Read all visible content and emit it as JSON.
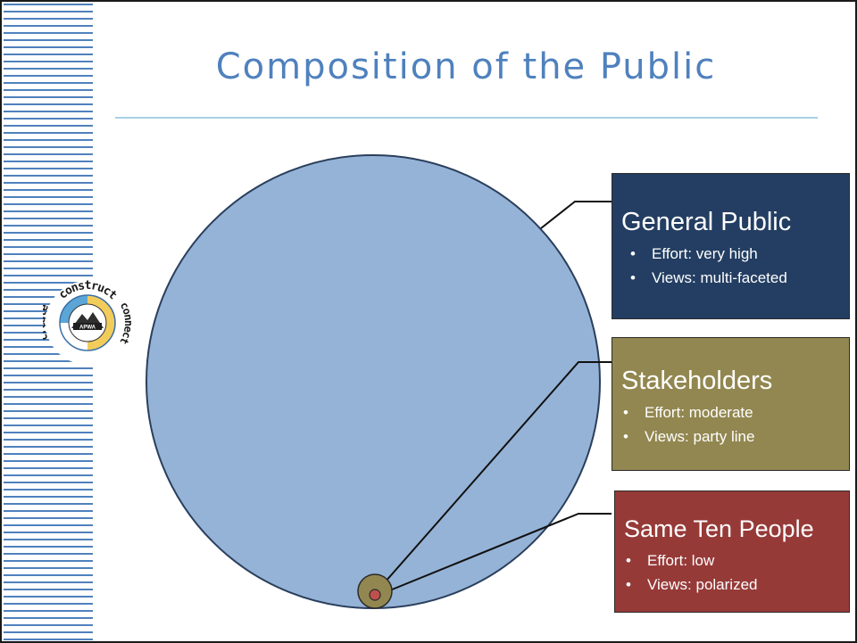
{
  "slide": {
    "title": "Composition of the Public"
  },
  "logo": {
    "top_text": "construct",
    "right_text": "connect",
    "left_text": "create",
    "badge": "APWA",
    "ring_text": "FOR OUR COMMUNITIES",
    "state": "WASHINGTON"
  },
  "groups": [
    {
      "heading": "General Public",
      "bullets": [
        "Effort: very high",
        "Views: multi-faceted"
      ],
      "color": "#233e62"
    },
    {
      "heading": "Stakeholders",
      "bullets": [
        "Effort: moderate",
        "Views: party line"
      ],
      "color": "#928750"
    },
    {
      "heading": "Same Ten People",
      "bullets": [
        "Effort: low",
        "Views: polarized"
      ],
      "color": "#963a38"
    }
  ],
  "colors": {
    "accent": "#4f81bd",
    "general_circle": "#95b3d7",
    "stakeholder_circle": "#928750",
    "few_circle": "#c0504d"
  }
}
